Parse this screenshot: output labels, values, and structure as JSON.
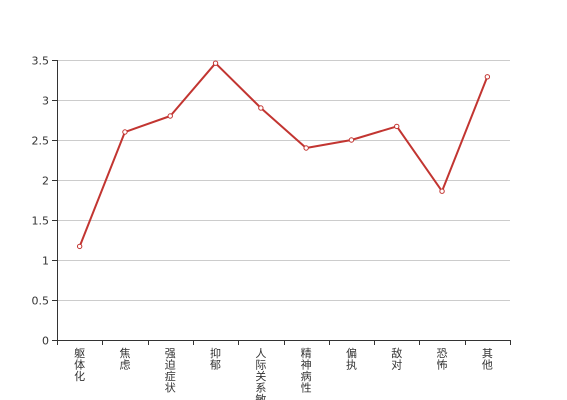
{
  "chart_data": {
    "type": "line",
    "title": "",
    "xlabel": "",
    "ylabel": "",
    "categories": [
      "躯体化",
      "焦虑",
      "强迫症状",
      "抑郁",
      "人际关系敏感",
      "精神病性",
      "偏执",
      "敌对",
      "恐怖",
      "其他"
    ],
    "series": [
      {
        "values": [
          1.17,
          2.6,
          2.8,
          3.46,
          2.9,
          2.4,
          2.5,
          2.67,
          1.86,
          3.29
        ]
      }
    ],
    "ylim": [
      0,
      3.5
    ],
    "yticks": [
      "0",
      "0.5",
      "1",
      "1.5",
      "2",
      "2.5",
      "3",
      "3.5"
    ],
    "grid": true,
    "legend": "none",
    "colors": {
      "line": "#c23531",
      "grid": "#cccccc",
      "axis": "#333333",
      "text": "#333333",
      "marker_fill": "#ffffff"
    }
  }
}
